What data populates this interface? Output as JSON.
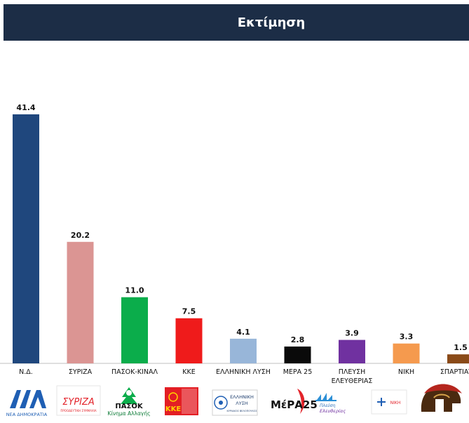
{
  "header": {
    "title": "Εκτίμηση"
  },
  "colors": {
    "header_bg": "#1c2d46",
    "nd": "#1f477d",
    "syriza": "#db9593",
    "pasok": "#0bad4b",
    "kke": "#ef1b1b",
    "elliniki_lysi": "#98b6d9",
    "mera25": "#0a0a0a",
    "plefsi": "#7031a0",
    "niki": "#f59a4e",
    "spartiates": "#8a4a18"
  },
  "chart_data": {
    "type": "bar",
    "title": "Εκτίμηση",
    "xlabel": "",
    "ylabel": "",
    "grid": false,
    "ylim": [
      0,
      45
    ],
    "categories": [
      "Ν.Δ.",
      "ΣΥΡΙΖΑ",
      "ΠΑΣΟΚ-ΚΙΝΑΛ",
      "ΚΚΕ",
      "ΕΛΛΗΝΙΚΗ ΛΥΣΗ",
      "ΜΕΡΑ 25",
      "ΠΛΕΥΣΗ ΕΛΕΥΘΕΡΙΑΣ",
      "ΝΙΚΗ",
      "ΣΠΑΡΤΙΑΤΕΣ"
    ],
    "category_lines": [
      [
        "Ν.Δ."
      ],
      [
        "ΣΥΡΙΖΑ"
      ],
      [
        "ΠΑΣΟΚ-ΚΙΝΑΛ"
      ],
      [
        "ΚΚΕ"
      ],
      [
        "ΕΛΛΗΝΙΚΗ ΛΥΣΗ"
      ],
      [
        "ΜΕΡΑ 25"
      ],
      [
        "ΠΛΕΥΣΗ",
        "ΕΛΕΥΘΕΡΙΑΣ"
      ],
      [
        "ΝΙΚΗ"
      ],
      [
        "ΣΠΑΡΤΙΑΤΕΣ"
      ]
    ],
    "values": [
      41.4,
      20.2,
      11.0,
      7.5,
      4.1,
      2.8,
      3.9,
      3.3,
      1.5
    ],
    "value_labels": [
      "41.4",
      "20.2",
      "11.0",
      "7.5",
      "4.1",
      "2.8",
      "3.9",
      "3.3",
      "1.5"
    ],
    "bar_colors": [
      "#1f477d",
      "#db9593",
      "#0bad4b",
      "#ef1b1b",
      "#98b6d9",
      "#0a0a0a",
      "#7031a0",
      "#f59a4e",
      "#8a4a18"
    ]
  },
  "logos": {
    "nd": {
      "line1": "ΝΕΑ ΔΗΜΟΚΡΑΤΙΑ"
    },
    "syriza": {
      "text": "ΣΥΡΙΖΑ",
      "sub": "ΠΡΟΟΔΕΥΤΙΚΗ ΣΥΜΜΑΧΙΑ"
    },
    "pasok": {
      "text": "ΠΑΣΟΚ",
      "sub": "Κίνημα Αλλαγής"
    },
    "kke": {
      "text": "ΚΚΕ"
    },
    "elliniki_lysi": {
      "line1": "ΕΛΛΗΝΙΚΗ",
      "line2": "ΛΥΣΗ",
      "line3": "ΚΥΡΙΑΚΟΣ ΒΕΛΟΠΟΥΛΟΣ"
    },
    "mera25": {
      "text": "ΜέΡΑ25"
    },
    "plefsi": {
      "line1": "Πλεύση",
      "line2": "Ελευθερίας"
    },
    "niki": {
      "text": "ΝΙΚΗ"
    }
  }
}
